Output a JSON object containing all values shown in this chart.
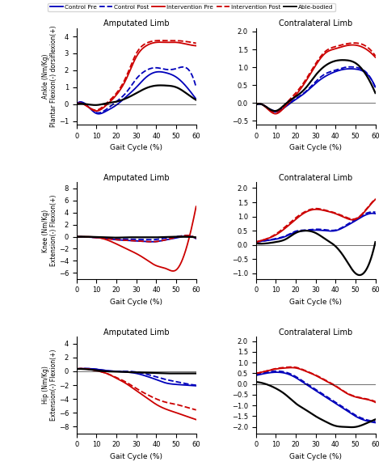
{
  "legend_labels": [
    "Control Pre",
    "Control Post",
    "Intervention Pre",
    "Intervention Post",
    "Able-bodied"
  ],
  "legend_colors": [
    "#0000bb",
    "#0000bb",
    "#cc0000",
    "#cc0000",
    "#000000"
  ],
  "legend_styles": [
    "solid",
    "dashed",
    "solid",
    "dashed",
    "solid"
  ],
  "subplot_titles": [
    [
      "Amputated Limb",
      "Contralateral Limb"
    ],
    [
      "Amputated Limb",
      "Contralateral Limb"
    ],
    [
      "Amputated Limb",
      "Contralateral Limb"
    ]
  ],
  "ylabels": [
    "Ankle (Nm/Kg)\nPlantar Flexion(-) dorsiflexion(+)",
    "Knee (Nm/Kg)\nExtension(-) Flexion(+)",
    "Hip (Nm/Kg)\nExtension(-) Flexion(+)"
  ],
  "xlabel": "Gait Cycle (%)",
  "xlim": [
    0,
    60
  ],
  "ylims": [
    [
      [
        -1.2,
        4.5
      ],
      [
        -0.6,
        2.1
      ]
    ],
    [
      [
        -7,
        9
      ],
      [
        -1.2,
        2.2
      ]
    ],
    [
      [
        -9,
        5
      ],
      [
        -2.3,
        2.2
      ]
    ]
  ],
  "yticks": [
    [
      [
        -1,
        0,
        1,
        2,
        3,
        4
      ],
      [
        -0.5,
        0.0,
        0.5,
        1.0,
        1.5,
        2.0
      ]
    ],
    [
      [
        -6,
        -4,
        -2,
        0,
        2,
        4,
        6,
        8
      ],
      [
        -1.0,
        -0.5,
        0.0,
        0.5,
        1.0,
        1.5,
        2.0
      ]
    ],
    [
      [
        -8,
        -6,
        -4,
        -2,
        0,
        2,
        4
      ],
      [
        -2.0,
        -1.5,
        -1.0,
        -0.5,
        0.0,
        0.5,
        1.0,
        1.5,
        2.0
      ]
    ]
  ],
  "xticks": [
    0,
    10,
    20,
    30,
    40,
    50,
    60
  ],
  "curves": {
    "ankle_amp": {
      "control_pre": [
        0.0,
        -0.05,
        -0.55,
        -0.4,
        -0.05,
        0.45,
        1.0,
        1.6,
        1.9,
        1.85,
        1.6,
        1.05,
        0.3
      ],
      "control_post": [
        0.0,
        -0.05,
        -0.5,
        -0.3,
        0.15,
        0.7,
        1.5,
        2.0,
        2.15,
        2.05,
        2.1,
        2.15,
        1.0
      ],
      "intervention_pre": [
        0.0,
        -0.1,
        -0.4,
        -0.05,
        0.55,
        1.5,
        2.8,
        3.45,
        3.65,
        3.65,
        3.65,
        3.55,
        3.45
      ],
      "intervention_post": [
        0.0,
        -0.1,
        -0.35,
        0.05,
        0.65,
        1.65,
        3.0,
        3.6,
        3.75,
        3.75,
        3.75,
        3.7,
        3.6
      ],
      "able_bodied": [
        0.0,
        0.0,
        -0.05,
        0.05,
        0.15,
        0.35,
        0.65,
        0.95,
        1.1,
        1.1,
        1.0,
        0.65,
        0.25
      ]
    },
    "ankle_con": {
      "control_pre": [
        -0.05,
        -0.1,
        -0.25,
        -0.1,
        0.1,
        0.3,
        0.55,
        0.75,
        0.88,
        0.95,
        0.95,
        0.85,
        0.45
      ],
      "control_post": [
        -0.05,
        -0.1,
        -0.22,
        -0.08,
        0.12,
        0.32,
        0.6,
        0.82,
        0.92,
        1.0,
        1.0,
        0.88,
        0.42
      ],
      "intervention_pre": [
        -0.05,
        -0.12,
        -0.3,
        -0.08,
        0.22,
        0.6,
        1.05,
        1.4,
        1.52,
        1.6,
        1.62,
        1.52,
        1.28
      ],
      "intervention_post": [
        -0.05,
        -0.1,
        -0.25,
        -0.02,
        0.28,
        0.65,
        1.1,
        1.45,
        1.58,
        1.65,
        1.68,
        1.6,
        1.32
      ],
      "able_bodied": [
        -0.05,
        -0.1,
        -0.22,
        -0.02,
        0.18,
        0.42,
        0.78,
        1.05,
        1.18,
        1.2,
        1.12,
        0.82,
        0.28
      ]
    },
    "knee_amp": {
      "control_pre": [
        0.0,
        -0.05,
        -0.15,
        -0.3,
        -0.5,
        -0.6,
        -0.7,
        -0.8,
        -0.8,
        -0.5,
        -0.2,
        0.1,
        -0.3
      ],
      "control_post": [
        0.0,
        -0.05,
        -0.1,
        -0.2,
        -0.35,
        -0.4,
        -0.45,
        -0.5,
        -0.45,
        -0.2,
        0.0,
        0.2,
        -0.3
      ],
      "intervention_pre": [
        0.0,
        0.0,
        -0.1,
        -0.5,
        -1.2,
        -2.0,
        -2.8,
        -3.8,
        -4.8,
        -5.3,
        -5.5,
        -2.0,
        5.0
      ],
      "intervention_post": [
        0.0,
        -0.05,
        -0.15,
        -0.3,
        -0.5,
        -0.6,
        -0.7,
        -0.8,
        -0.8,
        -0.5,
        -0.1,
        0.2,
        -0.25
      ],
      "able_bodied": [
        0.0,
        0.0,
        -0.05,
        -0.1,
        -0.15,
        -0.1,
        -0.1,
        -0.1,
        -0.1,
        -0.05,
        0.0,
        0.0,
        -0.1
      ]
    },
    "knee_con": {
      "control_pre": [
        0.1,
        0.15,
        0.2,
        0.3,
        0.45,
        0.5,
        0.52,
        0.5,
        0.5,
        0.65,
        0.85,
        1.05,
        1.1
      ],
      "control_post": [
        0.1,
        0.15,
        0.22,
        0.32,
        0.48,
        0.52,
        0.55,
        0.53,
        0.52,
        0.68,
        0.9,
        1.1,
        1.15
      ],
      "intervention_pre": [
        0.1,
        0.2,
        0.35,
        0.6,
        0.9,
        1.15,
        1.25,
        1.2,
        1.1,
        0.95,
        0.9,
        1.2,
        1.6
      ],
      "intervention_post": [
        0.1,
        0.2,
        0.38,
        0.65,
        0.95,
        1.18,
        1.28,
        1.22,
        1.12,
        0.98,
        0.92,
        1.22,
        1.62
      ],
      "able_bodied": [
        0.05,
        0.05,
        0.1,
        0.2,
        0.42,
        0.5,
        0.42,
        0.2,
        -0.05,
        -0.5,
        -1.0,
        -0.92,
        0.1
      ]
    },
    "hip_amp": {
      "control_pre": [
        0.35,
        0.4,
        0.3,
        0.1,
        0.0,
        -0.1,
        -0.3,
        -0.7,
        -1.2,
        -1.7,
        -1.9,
        -2.0,
        -2.1
      ],
      "control_post": [
        0.35,
        0.4,
        0.3,
        0.1,
        0.0,
        0.0,
        -0.1,
        -0.4,
        -0.8,
        -1.2,
        -1.5,
        -1.8,
        -2.0
      ],
      "intervention_pre": [
        0.35,
        0.35,
        0.1,
        -0.3,
        -1.0,
        -1.8,
        -2.8,
        -3.8,
        -4.8,
        -5.5,
        -6.0,
        -6.5,
        -7.0
      ],
      "intervention_post": [
        0.35,
        0.35,
        0.1,
        -0.3,
        -0.9,
        -1.6,
        -2.5,
        -3.3,
        -4.0,
        -4.5,
        -4.8,
        -5.2,
        -5.6
      ],
      "able_bodied": [
        0.35,
        0.3,
        0.15,
        0.0,
        -0.05,
        -0.1,
        -0.15,
        -0.2,
        -0.25,
        -0.3,
        -0.3,
        -0.3,
        -0.3
      ]
    },
    "hip_con": {
      "control_pre": [
        0.4,
        0.5,
        0.55,
        0.5,
        0.3,
        0.0,
        -0.3,
        -0.6,
        -0.9,
        -1.2,
        -1.5,
        -1.7,
        -1.8
      ],
      "control_post": [
        0.45,
        0.55,
        0.6,
        0.55,
        0.35,
        0.05,
        -0.25,
        -0.55,
        -0.85,
        -1.15,
        -1.45,
        -1.65,
        -1.75
      ],
      "intervention_pre": [
        0.5,
        0.6,
        0.7,
        0.75,
        0.75,
        0.6,
        0.4,
        0.15,
        -0.1,
        -0.4,
        -0.6,
        -0.7,
        -0.85
      ],
      "intervention_post": [
        0.5,
        0.6,
        0.72,
        0.78,
        0.78,
        0.62,
        0.42,
        0.18,
        -0.08,
        -0.38,
        -0.58,
        -0.68,
        -0.82
      ],
      "able_bodied": [
        0.1,
        0.0,
        -0.2,
        -0.5,
        -0.9,
        -1.2,
        -1.5,
        -1.75,
        -1.95,
        -2.0,
        -2.0,
        -1.85,
        -1.65
      ]
    }
  },
  "line_colors": {
    "control_pre": "#0000bb",
    "control_post": "#0000bb",
    "intervention_pre": "#cc0000",
    "intervention_post": "#cc0000",
    "able_bodied": "#000000"
  },
  "line_styles": {
    "control_pre": "solid",
    "control_post": "dashed",
    "intervention_pre": "solid",
    "intervention_post": "dashed",
    "able_bodied": "solid"
  },
  "line_widths": {
    "control_pre": 1.3,
    "control_post": 1.3,
    "intervention_pre": 1.3,
    "intervention_post": 1.3,
    "able_bodied": 1.6
  }
}
